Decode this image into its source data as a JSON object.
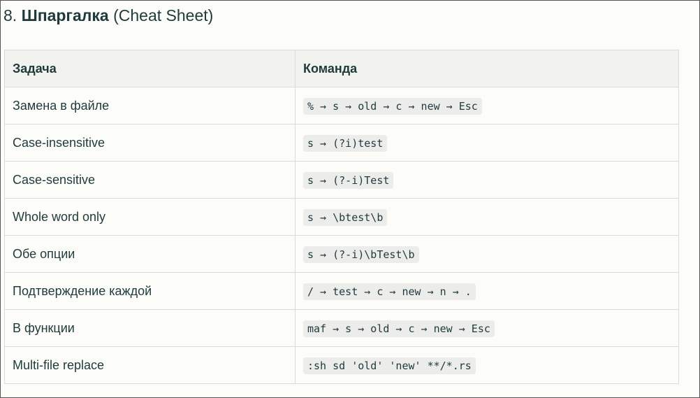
{
  "heading": {
    "number": "8.",
    "title": "Шпаргалка",
    "subtitle": "(Cheat Sheet)"
  },
  "table": {
    "header": [
      "Задача",
      "Команда"
    ],
    "rows": [
      [
        "Замена в файле",
        "% → s → old → c → new → Esc"
      ],
      [
        "Case-insensitive",
        "s → (?i)test"
      ],
      [
        "Case-sensitive",
        "s → (?-i)Test"
      ],
      [
        "Whole word only",
        "s → \\btest\\b"
      ],
      [
        "Обе опции",
        "s → (?-i)\\bTest\\b"
      ],
      [
        "Подтверждение каждой",
        "/ → test → c → new → n → ."
      ],
      [
        "В функции",
        "maf → s → old → c → new → Esc"
      ],
      [
        "Multi-file replace",
        ":sh sd 'old' 'new' **/*.rs"
      ]
    ]
  }
}
